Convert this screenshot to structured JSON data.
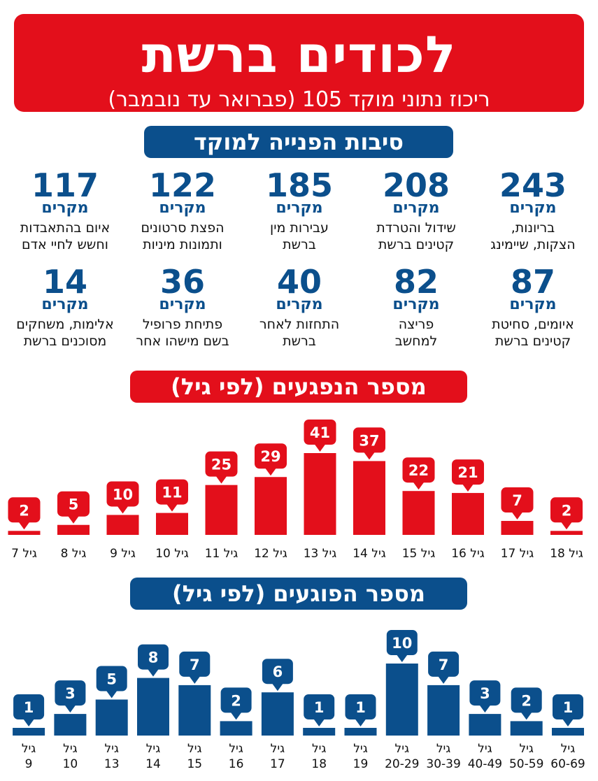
{
  "header": {
    "title": "לכודים ברשת",
    "subtitle": "ריכוז נתוני מוקד 105 (פברואר עד נובמבר)"
  },
  "colors": {
    "red": "#e30f1b",
    "blue": "#0b4f8c"
  },
  "reasons": {
    "heading": "סיבות הפנייה למוקד",
    "unit": "מקרים",
    "items": [
      {
        "value": "243",
        "desc": "בריונות,\nהצקות, שיימינג"
      },
      {
        "value": "208",
        "desc": "שידול והטרדת\nקטינים ברשת"
      },
      {
        "value": "185",
        "desc": "עבירות מין\nברשת"
      },
      {
        "value": "122",
        "desc": "הפצת סרטונים\nותמונות מיניות"
      },
      {
        "value": "117",
        "desc": "איום בהתאבדות\nוחשש לחיי אדם"
      },
      {
        "value": "87",
        "desc": "איומים, סחיטת\nקטינים ברשת"
      },
      {
        "value": "82",
        "desc": "פריצה\nלמחשב"
      },
      {
        "value": "40",
        "desc": "התחזות לאחר\nברשת"
      },
      {
        "value": "36",
        "desc": "פתיחת פרופיל\nבשם מישהו אחר"
      },
      {
        "value": "14",
        "desc": "אלימות, משחקים\nמסוכנים ברשת"
      }
    ]
  },
  "chart_data": [
    {
      "type": "bar",
      "title": "מספר הנפגעים (לפי גיל)",
      "categories": [
        "גיל 18",
        "גיל 17",
        "גיל 16",
        "גיל 15",
        "גיל 14",
        "גיל 13",
        "גיל 12",
        "גיל 11",
        "גיל 10",
        "גיל 9",
        "גיל 8",
        "גיל 7"
      ],
      "values": [
        2,
        7,
        21,
        22,
        37,
        41,
        29,
        25,
        11,
        10,
        5,
        2
      ],
      "color": "#e30f1b",
      "order": "right-to-left"
    },
    {
      "type": "bar",
      "title": "מספר הפוגעים (לפי גיל)",
      "categories": [
        "גיל 60-69",
        "גיל 50-59",
        "גיל 40-49",
        "גיל 30-39",
        "גיל 20-29",
        "גיל 19",
        "גיל 18",
        "גיל 17",
        "גיל 16",
        "גיל 15",
        "גיל 14",
        "גיל 13",
        "גיל 10",
        "גיל 9"
      ],
      "values": [
        1,
        2,
        3,
        7,
        10,
        1,
        1,
        6,
        2,
        7,
        8,
        5,
        3,
        1
      ],
      "color": "#0b4f8c",
      "order": "right-to-left"
    }
  ]
}
